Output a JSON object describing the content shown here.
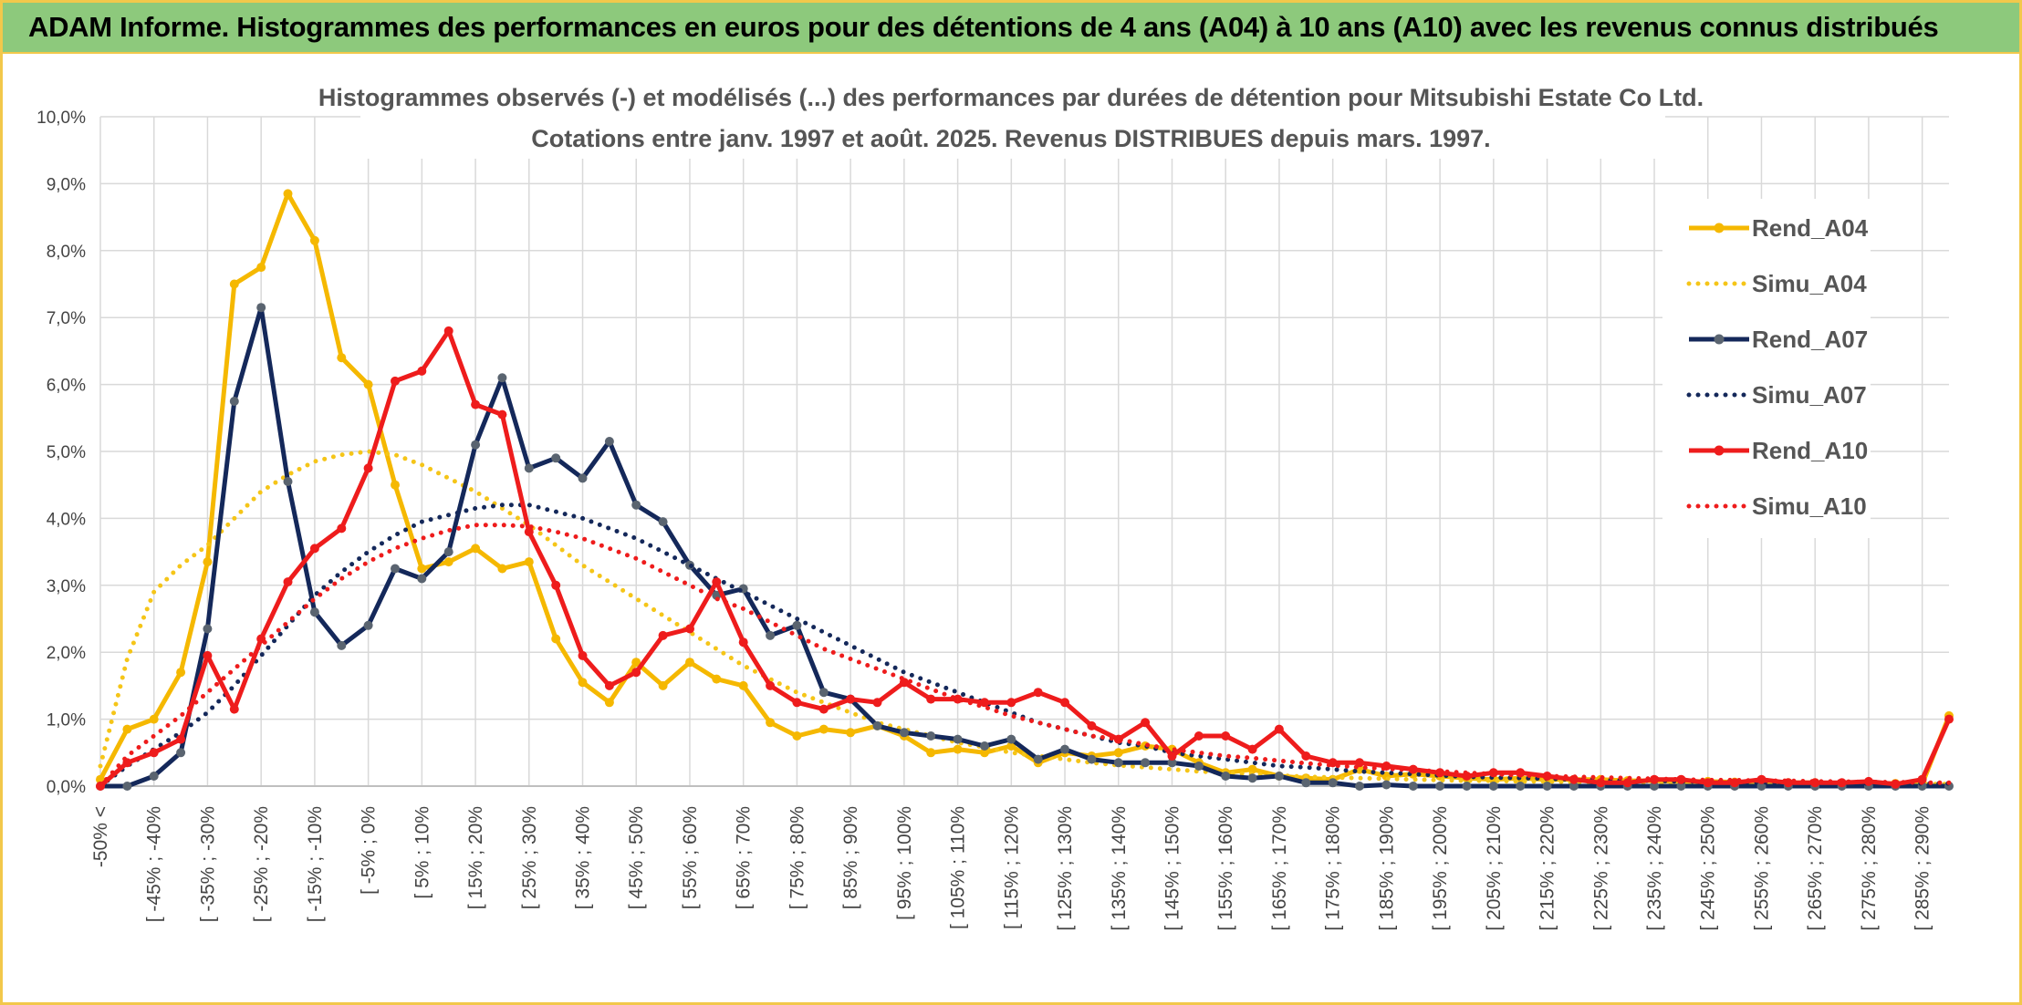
{
  "header": {
    "title": "ADAM Informe. Histogrammes des performances en euros pour des détentions de 4 ans (A04) à 10 ans (A10) avec les revenus connus distribués"
  },
  "chart_data": {
    "type": "line",
    "title": "Histogrammes observés (-) et modélisés (...) des performances par durées de détention pour Mitsubishi Estate Co Ltd.",
    "subtitle": "Cotations entre janv. 1997 et août. 2025. Revenus DISTRIBUES depuis mars. 1997.",
    "xlabel": "",
    "ylabel": "",
    "ylim": [
      0,
      10
    ],
    "y_ticks": [
      "0,0%",
      "1,0%",
      "2,0%",
      "3,0%",
      "4,0%",
      "5,0%",
      "6,0%",
      "7,0%",
      "8,0%",
      "9,0%",
      "10,0%"
    ],
    "grid": true,
    "legend_position": "right",
    "x_tick_labels": [
      "-50% <",
      "[ -45% ; -40%",
      "[ -35% ; -30%",
      "[ -25% ; -20%",
      "[ -15% ; -10%",
      "[ -5% ; 0%",
      "[ 5% ; 10%",
      "[ 15% ; 20%",
      "[ 25% ; 30%",
      "[ 35% ; 40%",
      "[ 45% ; 50%",
      "[ 55% ; 60%",
      "[ 65% ; 70%",
      "[ 75% ; 80%",
      "[ 85% ; 90%",
      "[ 95% ; 100%",
      "[ 105% ; 110%",
      "[ 115% ; 120%",
      "[ 125% ; 130%",
      "[ 135% ; 140%",
      "[ 145% ; 150%",
      "[ 155% ; 160%",
      "[ 165% ; 170%",
      "[ 175% ; 180%",
      "[ 185% ; 190%",
      "[ 195% ; 200%",
      "[ 205% ; 210%",
      "[ 215% ; 220%",
      "[ 225% ; 230%",
      "[ 235% ; 240%",
      "[ 245% ; 250%",
      "[ 255% ; 260%",
      "[ 265% ; 270%",
      "[ 275% ; 280%",
      "[ 285% ; 290%"
    ],
    "n_bins": 70,
    "series": [
      {
        "name": "Rend_A04",
        "color": "#f5b800",
        "style": "solid",
        "markers": true,
        "values": [
          0.1,
          0.85,
          1.0,
          1.7,
          3.35,
          7.5,
          7.75,
          8.85,
          8.15,
          6.4,
          6.0,
          4.5,
          3.25,
          3.35,
          3.55,
          3.25,
          3.35,
          2.2,
          1.55,
          1.25,
          1.85,
          1.5,
          1.85,
          1.6,
          1.5,
          0.95,
          0.75,
          0.85,
          0.8,
          0.9,
          0.75,
          0.5,
          0.55,
          0.5,
          0.6,
          0.35,
          0.5,
          0.45,
          0.5,
          0.6,
          0.55,
          0.35,
          0.2,
          0.25,
          0.15,
          0.12,
          0.1,
          0.25,
          0.15,
          0.18,
          0.15,
          0.12,
          0.1,
          0.12,
          0.1,
          0.1,
          0.1,
          0.08,
          0.08,
          0.07,
          0.07,
          0.06,
          0.06,
          0.05,
          0.05,
          0.04,
          0.04,
          0.04,
          0.03,
          1.05
        ]
      },
      {
        "name": "Simu_A04",
        "color": "#f5c518",
        "style": "dotted",
        "markers": false,
        "values": [
          0.3,
          1.9,
          2.9,
          3.3,
          3.6,
          4.0,
          4.4,
          4.65,
          4.85,
          4.95,
          5.0,
          4.95,
          4.8,
          4.6,
          4.4,
          4.15,
          3.9,
          3.6,
          3.3,
          3.05,
          2.8,
          2.55,
          2.3,
          2.05,
          1.8,
          1.6,
          1.4,
          1.25,
          1.1,
          0.95,
          0.85,
          0.75,
          0.65,
          0.58,
          0.5,
          0.45,
          0.4,
          0.35,
          0.31,
          0.28,
          0.25,
          0.22,
          0.2,
          0.18,
          0.16,
          0.14,
          0.13,
          0.12,
          0.11,
          0.1,
          0.09,
          0.08,
          0.08,
          0.07,
          0.07,
          0.06,
          0.06,
          0.05,
          0.05,
          0.05,
          0.04,
          0.04,
          0.04,
          0.04,
          0.03,
          0.03,
          0.03,
          0.03,
          0.03,
          0.03
        ]
      },
      {
        "name": "Rend_A07",
        "color": "#14285a",
        "style": "solid",
        "markers": true,
        "marker_color": "#5a6470",
        "values": [
          0.0,
          0.0,
          0.15,
          0.5,
          2.35,
          5.75,
          7.15,
          4.55,
          2.6,
          2.1,
          2.4,
          3.25,
          3.1,
          3.5,
          5.1,
          6.1,
          4.75,
          4.9,
          4.6,
          5.15,
          4.2,
          3.95,
          3.3,
          2.85,
          2.95,
          2.25,
          2.4,
          1.4,
          1.3,
          0.9,
          0.8,
          0.75,
          0.7,
          0.6,
          0.7,
          0.4,
          0.55,
          0.4,
          0.35,
          0.35,
          0.35,
          0.3,
          0.15,
          0.12,
          0.15,
          0.05,
          0.05,
          0.0,
          0.02,
          0.0,
          0.0,
          0.0,
          0.0,
          0.0,
          0.0,
          0.0,
          0.0,
          0.0,
          0.0,
          0.0,
          0.0,
          0.0,
          0.0,
          0.0,
          0.0,
          0.0,
          0.0,
          0.0,
          0.0,
          0.0
        ]
      },
      {
        "name": "Simu_A07",
        "color": "#14285a",
        "style": "dotted",
        "markers": false,
        "values": [
          0.0,
          0.3,
          0.55,
          0.8,
          1.1,
          1.5,
          1.95,
          2.4,
          2.85,
          3.2,
          3.5,
          3.75,
          3.95,
          4.05,
          4.15,
          4.2,
          4.2,
          4.1,
          4.0,
          3.85,
          3.7,
          3.5,
          3.3,
          3.1,
          2.9,
          2.7,
          2.5,
          2.3,
          2.1,
          1.9,
          1.7,
          1.55,
          1.4,
          1.25,
          1.1,
          0.95,
          0.85,
          0.75,
          0.65,
          0.6,
          0.5,
          0.45,
          0.4,
          0.35,
          0.3,
          0.28,
          0.25,
          0.22,
          0.2,
          0.18,
          0.16,
          0.14,
          0.13,
          0.12,
          0.11,
          0.1,
          0.09,
          0.08,
          0.08,
          0.07,
          0.07,
          0.06,
          0.06,
          0.05,
          0.05,
          0.05,
          0.04,
          0.04,
          0.04,
          0.04
        ]
      },
      {
        "name": "Rend_A10",
        "color": "#ee1c1c",
        "style": "solid",
        "markers": true,
        "values": [
          0.0,
          0.35,
          0.5,
          0.7,
          1.95,
          1.15,
          2.2,
          3.05,
          3.55,
          3.85,
          4.75,
          6.05,
          6.2,
          6.8,
          5.7,
          5.55,
          3.8,
          3.0,
          1.95,
          1.5,
          1.7,
          2.25,
          2.35,
          3.05,
          2.15,
          1.5,
          1.25,
          1.15,
          1.3,
          1.25,
          1.55,
          1.3,
          1.3,
          1.25,
          1.25,
          1.4,
          1.25,
          0.9,
          0.7,
          0.95,
          0.45,
          0.75,
          0.75,
          0.55,
          0.85,
          0.45,
          0.35,
          0.35,
          0.3,
          0.25,
          0.2,
          0.15,
          0.2,
          0.2,
          0.15,
          0.1,
          0.05,
          0.05,
          0.1,
          0.1,
          0.05,
          0.05,
          0.1,
          0.05,
          0.05,
          0.05,
          0.07,
          0.03,
          0.1,
          1.0
        ]
      },
      {
        "name": "Simu_A10",
        "color": "#ee1c1c",
        "style": "dotted",
        "markers": false,
        "values": [
          0.0,
          0.45,
          0.75,
          1.05,
          1.4,
          1.75,
          2.1,
          2.45,
          2.8,
          3.1,
          3.35,
          3.55,
          3.7,
          3.82,
          3.9,
          3.9,
          3.88,
          3.8,
          3.7,
          3.55,
          3.4,
          3.2,
          3.0,
          2.8,
          2.65,
          2.45,
          2.25,
          2.05,
          1.9,
          1.75,
          1.6,
          1.45,
          1.3,
          1.18,
          1.05,
          0.95,
          0.85,
          0.75,
          0.7,
          0.62,
          0.55,
          0.5,
          0.45,
          0.42,
          0.38,
          0.34,
          0.31,
          0.28,
          0.26,
          0.24,
          0.22,
          0.2,
          0.18,
          0.16,
          0.15,
          0.14,
          0.13,
          0.12,
          0.11,
          0.1,
          0.09,
          0.09,
          0.08,
          0.08,
          0.07,
          0.07,
          0.06,
          0.06,
          0.05,
          0.05
        ]
      }
    ]
  }
}
